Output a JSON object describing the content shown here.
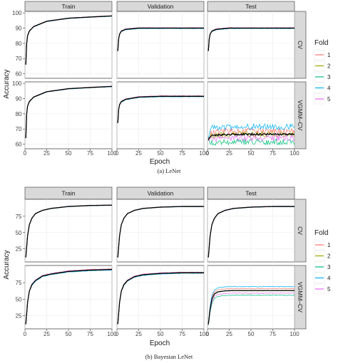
{
  "captions": [
    "(a) LeNet",
    "(b) Bayesian LeNet"
  ],
  "legend": {
    "title": "Fold",
    "entries": [
      {
        "label": "1",
        "color": "#F8766D"
      },
      {
        "label": "2",
        "color": "#A3A500"
      },
      {
        "label": "3",
        "color": "#00BF7D"
      },
      {
        "label": "4",
        "color": "#00B0F6"
      },
      {
        "label": "5",
        "color": "#E76BF3"
      }
    ]
  },
  "mean_line_color": "#000000",
  "chart_data": [
    {
      "type": "line",
      "title": "(a) LeNet",
      "xlabel": "Epoch",
      "ylabel": "Accuracy",
      "columns": [
        "Train",
        "Validation",
        "Test"
      ],
      "rows": [
        "CV",
        "VGMM–CV"
      ],
      "xlim": [
        0,
        100
      ],
      "xticks": [
        0,
        25,
        50,
        75,
        100
      ],
      "ylim": [
        57,
        101
      ],
      "yticks": [
        60,
        70,
        80,
        90,
        100
      ],
      "grid": true,
      "legend_position": "right",
      "series": [
        "1",
        "2",
        "3",
        "4",
        "5"
      ],
      "panels": [
        {
          "row": "CV",
          "col": "Train",
          "x": [
            1,
            2,
            3,
            5,
            10,
            25,
            50,
            75,
            100
          ],
          "y": [
            66,
            80,
            85,
            88,
            91,
            94.5,
            96.5,
            97.3,
            98
          ],
          "fold_spread": 0.3
        },
        {
          "row": "CV",
          "col": "Validation",
          "x": [
            1,
            2,
            3,
            5,
            10,
            25,
            50,
            75,
            100
          ],
          "y": [
            75,
            83,
            86,
            88,
            89.2,
            90,
            90,
            90,
            90
          ],
          "fold_spread": 0.5
        },
        {
          "row": "CV",
          "col": "Test",
          "x": [
            1,
            2,
            3,
            5,
            10,
            25,
            50,
            75,
            100
          ],
          "y": [
            75,
            83,
            86,
            88,
            89.2,
            90,
            90,
            90,
            90
          ],
          "fold_spread": 0.5
        },
        {
          "row": "VGMM–CV",
          "col": "Train",
          "x": [
            1,
            2,
            3,
            5,
            10,
            25,
            50,
            75,
            100
          ],
          "y": [
            64,
            80,
            85,
            88,
            91,
            94.5,
            96.5,
            97.3,
            98
          ],
          "fold_spread": 0.3
        },
        {
          "row": "VGMM–CV",
          "col": "Validation",
          "x": [
            1,
            2,
            3,
            5,
            10,
            25,
            50,
            75,
            100
          ],
          "y": [
            74,
            83,
            86,
            88,
            89.5,
            91,
            91.5,
            91.5,
            91.5
          ],
          "fold_spread": 0.5
        },
        {
          "row": "VGMM–CV",
          "col": "Test",
          "x": [
            1,
            2,
            3,
            5,
            10,
            25,
            50,
            75,
            100
          ],
          "y": [
            63,
            64,
            65,
            66,
            66,
            66.5,
            66.5,
            66.5,
            66.5
          ],
          "noisy": true,
          "fold_offsets": [
            2,
            0,
            -5,
            5,
            -2.5
          ],
          "fold_noise": 2
        }
      ]
    },
    {
      "type": "line",
      "title": "(b) Bayesian LeNet",
      "xlabel": "Epoch",
      "ylabel": "Accuracy",
      "columns": [
        "Train",
        "Validation",
        "Test"
      ],
      "rows": [
        "CV",
        "VGMM–CV"
      ],
      "xlim": [
        0,
        100
      ],
      "xticks": [
        0,
        25,
        50,
        75,
        100
      ],
      "ylim": [
        5,
        101
      ],
      "yticks": [
        25,
        50,
        75
      ],
      "grid": true,
      "legend_position": "right",
      "series": [
        "1",
        "2",
        "3",
        "4",
        "5"
      ],
      "panels": [
        {
          "row": "CV",
          "col": "Train",
          "x": [
            1,
            3,
            5,
            8,
            12,
            20,
            30,
            50,
            75,
            100
          ],
          "y": [
            12,
            45,
            62,
            72,
            79,
            84,
            87,
            90,
            91.5,
            92
          ],
          "fold_spread": 0.5
        },
        {
          "row": "CV",
          "col": "Validation",
          "x": [
            1,
            3,
            5,
            8,
            12,
            20,
            30,
            50,
            75,
            100
          ],
          "y": [
            12,
            45,
            62,
            72,
            79,
            84,
            87,
            89,
            90,
            90
          ],
          "fold_spread": 0.5
        },
        {
          "row": "CV",
          "col": "Test",
          "x": [
            1,
            3,
            5,
            8,
            12,
            20,
            30,
            50,
            75,
            100
          ],
          "y": [
            12,
            45,
            62,
            72,
            79,
            84,
            87,
            89,
            90,
            90
          ],
          "fold_spread": 0.5
        },
        {
          "row": "VGMM–CV",
          "col": "Train",
          "x": [
            1,
            3,
            5,
            8,
            12,
            20,
            30,
            50,
            75,
            100
          ],
          "y": [
            12,
            45,
            62,
            72,
            78,
            85,
            88,
            92,
            94,
            95
          ],
          "fold_spread": 1.5
        },
        {
          "row": "VGMM–CV",
          "col": "Validation",
          "x": [
            1,
            3,
            5,
            8,
            12,
            20,
            30,
            50,
            75,
            100
          ],
          "y": [
            12,
            45,
            62,
            72,
            78,
            84,
            87,
            89,
            90,
            90
          ],
          "fold_spread": 1.5
        },
        {
          "row": "VGMM–CV",
          "col": "Test",
          "x": [
            1,
            3,
            5,
            8,
            12,
            20,
            30,
            50,
            75,
            100
          ],
          "y": [
            12,
            35,
            50,
            58,
            61,
            62.5,
            63,
            63,
            63,
            63
          ],
          "fold_offsets": [
            3,
            0,
            -7,
            6,
            -4
          ],
          "fold_noise": 0.6
        }
      ]
    }
  ]
}
